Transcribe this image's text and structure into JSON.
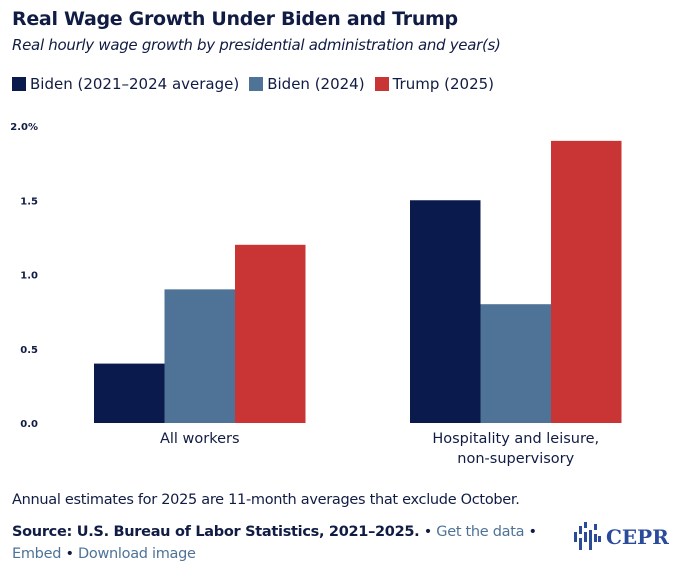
{
  "title": "Real Wage Growth Under Biden and Trump",
  "subtitle": "Real hourly wage growth by presidential administration and year(s)",
  "chart_data": {
    "type": "bar",
    "categories": [
      "All workers",
      "Hospitality and leisure, non-supervisory"
    ],
    "series": [
      {
        "name": "Biden (2021–2024 average)",
        "color": "#0b1a4c",
        "values": [
          0.4,
          1.5
        ]
      },
      {
        "name": "Biden (2024)",
        "color": "#4e7397",
        "values": [
          0.9,
          0.8
        ]
      },
      {
        "name": "Trump (2025)",
        "color": "#c93434",
        "values": [
          1.2,
          1.9
        ]
      }
    ],
    "ylim": [
      0,
      2.0
    ],
    "yticks": [
      "0.0",
      "0.5",
      "1.0",
      "1.5",
      "2.0%"
    ],
    "grid": false,
    "legend": "top-left"
  },
  "note": "Annual estimates for 2025 are 11-month averages that exclude October.",
  "footer": {
    "source": "Source: U.S. Bureau of Labor Statistics, 2021–2025.",
    "get_data": "Get the data",
    "embed": "Embed",
    "download": "Download image",
    "sep": "•",
    "logo": "CEPR"
  }
}
